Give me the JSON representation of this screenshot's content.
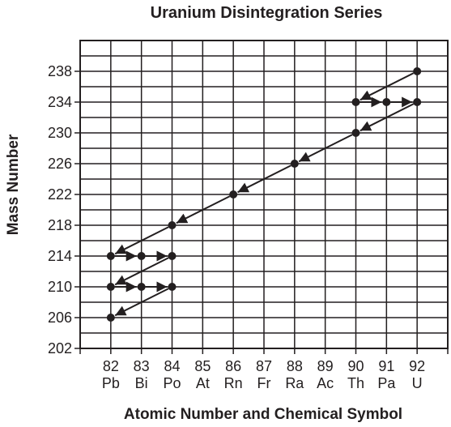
{
  "chart_data": {
    "type": "scatter",
    "title": "Uranium Disintegration Series",
    "xlabel": "Atomic Number and Chemical Symbol",
    "ylabel": "Mass Number",
    "x_ticks": [
      {
        "number": "82",
        "symbol": "Pb"
      },
      {
        "number": "83",
        "symbol": "Bi"
      },
      {
        "number": "84",
        "symbol": "Po"
      },
      {
        "number": "85",
        "symbol": "At"
      },
      {
        "number": "86",
        "symbol": "Rn"
      },
      {
        "number": "87",
        "symbol": "Fr"
      },
      {
        "number": "88",
        "symbol": "Ra"
      },
      {
        "number": "89",
        "symbol": "Ac"
      },
      {
        "number": "90",
        "symbol": "Th"
      },
      {
        "number": "91",
        "symbol": "Pa"
      },
      {
        "number": "92",
        "symbol": "U"
      }
    ],
    "y_ticks": [
      "202",
      "206",
      "210",
      "214",
      "218",
      "222",
      "226",
      "230",
      "234",
      "238"
    ],
    "xlim": [
      81,
      93
    ],
    "ylim": [
      202,
      242
    ],
    "grid": true,
    "points": [
      {
        "x": 92,
        "y": 238
      },
      {
        "x": 90,
        "y": 234
      },
      {
        "x": 91,
        "y": 234
      },
      {
        "x": 92,
        "y": 234
      },
      {
        "x": 90,
        "y": 230
      },
      {
        "x": 88,
        "y": 226
      },
      {
        "x": 86,
        "y": 222
      },
      {
        "x": 84,
        "y": 218
      },
      {
        "x": 82,
        "y": 214
      },
      {
        "x": 83,
        "y": 214
      },
      {
        "x": 84,
        "y": 214
      },
      {
        "x": 82,
        "y": 210
      },
      {
        "x": 83,
        "y": 210
      },
      {
        "x": 84,
        "y": 210
      },
      {
        "x": 82,
        "y": 206
      }
    ],
    "arrows": [
      {
        "from": [
          92,
          238
        ],
        "to": [
          90,
          234
        ]
      },
      {
        "from": [
          90,
          234
        ],
        "to": [
          91,
          234
        ]
      },
      {
        "from": [
          91,
          234
        ],
        "to": [
          92,
          234
        ]
      },
      {
        "from": [
          92,
          234
        ],
        "to": [
          90,
          230
        ]
      },
      {
        "from": [
          90,
          230
        ],
        "to": [
          88,
          226
        ]
      },
      {
        "from": [
          88,
          226
        ],
        "to": [
          86,
          222
        ]
      },
      {
        "from": [
          86,
          222
        ],
        "to": [
          84,
          218
        ]
      },
      {
        "from": [
          84,
          218
        ],
        "to": [
          82,
          214
        ]
      },
      {
        "from": [
          82,
          214
        ],
        "to": [
          83,
          214
        ]
      },
      {
        "from": [
          83,
          214
        ],
        "to": [
          84,
          214
        ]
      },
      {
        "from": [
          84,
          214
        ],
        "to": [
          82,
          210
        ]
      },
      {
        "from": [
          82,
          210
        ],
        "to": [
          83,
          210
        ]
      },
      {
        "from": [
          83,
          210
        ],
        "to": [
          84,
          210
        ]
      },
      {
        "from": [
          84,
          210
        ],
        "to": [
          82,
          206
        ]
      }
    ]
  }
}
